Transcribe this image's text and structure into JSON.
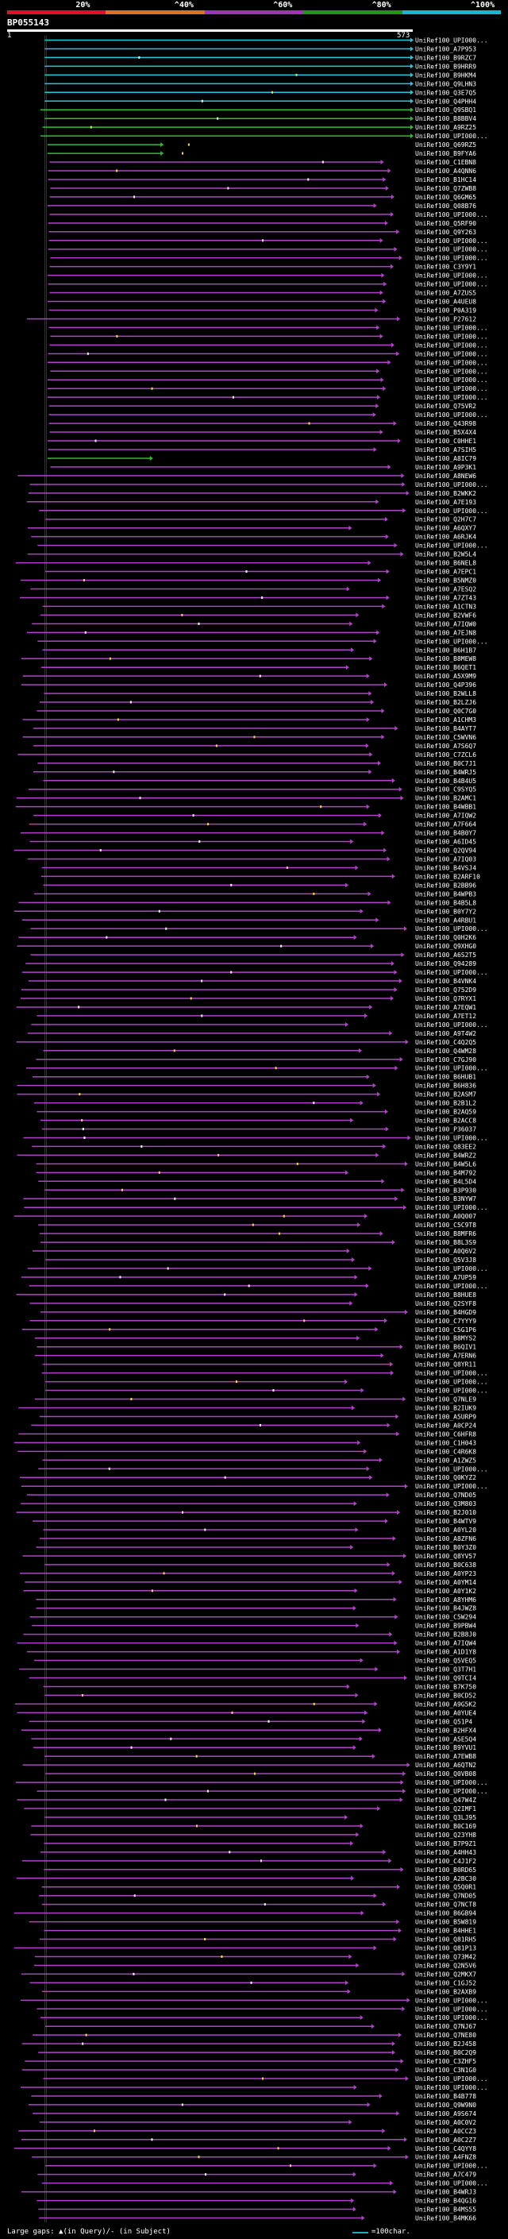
{
  "header": {
    "query_id": "BP055143",
    "query_start": "1",
    "query_end": "573",
    "query_length": 573,
    "pct_labels": [
      "20%",
      "^40%",
      "^60%",
      "^80%",
      "^100%"
    ],
    "pct_colors": [
      "#e0102b",
      "#e0701a",
      "#9c35b5",
      "#1a9a1a",
      "#1ab5d0"
    ]
  },
  "footer": {
    "gaps_text": "Large gaps: ▲(in Query)/- (in Subject)",
    "scale_text": "=100char."
  },
  "chart_data": {
    "type": "alignment-overview",
    "title": "BP055143",
    "query_range": [
      1,
      573
    ],
    "identity_colors": {
      "cyan": "#21c9dc",
      "green": "#33b833",
      "purple": "#b043c8"
    },
    "hit_labels": [
      "UniRef100_UPI000...",
      "UniRef100_A7P953",
      "UniRef100_B9RZC7",
      "UniRef100_B9HRR9",
      "UniRef100_B9HKM4",
      "UniRef100_Q9LHN3",
      "UniRef100_Q3E7Q5",
      "UniRef100_Q4PHH4",
      "UniRef100_Q9SBQ1",
      "UniRef100_B8BBV4",
      "UniRef100_A9RZ25",
      "UniRef100_UPI000...",
      "UniRef100_Q69RZ5",
      "UniRef100_B9FYA6",
      "UniRef100_C1EBN8",
      "UniRef100_A4QNN6",
      "UniRef100_B1HC14",
      "UniRef100_Q7ZWB8",
      "UniRef100_Q6GM65",
      "UniRef100_Q08B76",
      "UniRef100_UPI000...",
      "UniRef100_Q5RF90",
      "UniRef100_Q9Y263",
      "UniRef100_UPI000...",
      "UniRef100_UPI000...",
      "UniRef100_UPI000...",
      "UniRef100_C3Y9Y1",
      "UniRef100_UPI000...",
      "UniRef100_UPI000...",
      "UniRef100_A7ZUS5",
      "UniRef100_A4UEU8",
      "UniRef100_P0A319",
      "UniRef100_P27612",
      "UniRef100_UPI000...",
      "UniRef100_UPI000...",
      "UniRef100_UPI000...",
      "UniRef100_UPI000...",
      "UniRef100_UPI000...",
      "UniRef100_UPI000...",
      "UniRef100_UPI000...",
      "UniRef100_UPI000...",
      "UniRef100_UPI000...",
      "UniRef100_Q75VR2",
      "UniRef100_UPI000...",
      "UniRef100_Q43R98",
      "UniRef100_B5X4X4",
      "UniRef100_C0HHE1",
      "UniRef100_A7SIH5",
      "UniRef100_A8IC79",
      "UniRef100_A9P3K1",
      "UniRef100_A8NEW6",
      "UniRef100_UPI000...",
      "UniRef100_B2WKK2",
      "UniRef100_A7E193",
      "UniRef100_UPI000...",
      "UniRef100_Q2H7C7",
      "UniRef100_A6QXY7",
      "UniRef100_A6RJK4",
      "UniRef100_UPI000...",
      "UniRef100_B2W5L4",
      "UniRef100_B6NEL8",
      "UniRef100_A7EPC1",
      "UniRef100_B5NMZ0",
      "UniRef100_A7ESQ2",
      "UniRef100_A7ZT43",
      "UniRef100_A1CTN3",
      "UniRef100_B2VWF6",
      "UniRef100_A7IQW0",
      "UniRef100_A7EJN8",
      "UniRef100_UPI000...",
      "UniRef100_B6H1B7",
      "UniRef100_B8MEW8",
      "UniRef100_B6QET1",
      "UniRef100_A5X9M9",
      "UniRef100_Q4P396",
      "UniRef100_B2WLL8",
      "UniRef100_B2LZJ6",
      "UniRef100_Q0C7G0",
      "UniRef100_A1CHM3",
      "UniRef100_B4AYT7",
      "UniRef100_C5WVN6",
      "UniRef100_A7S6Q7",
      "UniRef100_C7ZCL6",
      "UniRef100_B0C7J1",
      "UniRef100_B4WRJ5",
      "UniRef100_B4B4U5",
      "UniRef100_C9SYQ5",
      "UniRef100_B2AMC1",
      "UniRef100_B4WBB1",
      "UniRef100_A7IQW2",
      "UniRef100_A7F664",
      "UniRef100_B4B0Y7",
      "UniRef100_A6ID45",
      "UniRef100_Q2QV94",
      "UniRef100_A7IQ03",
      "UniRef100_B4VSJ4",
      "UniRef100_B2ARF10",
      "UniRef100_B2BB96",
      "UniRef100_B4WPB3",
      "UniRef100_B4B5L8",
      "UniRef100_B0Y7Y2",
      "UniRef100_A4RBU1",
      "UniRef100_UPI000...",
      "UniRef100_Q0H2K6",
      "UniRef100_Q9XHG0",
      "UniRef100_A6S2T5",
      "UniRef100_Q94289",
      "UniRef100_UPI000...",
      "UniRef100_B4VNK4",
      "UniRef100_Q752D9",
      "UniRef100_Q7RYX1",
      "UniRef100_A7EQW1",
      "UniRef100_A7ET12",
      "UniRef100_UPI000...",
      "UniRef100_A9T4W2",
      "UniRef100_C4Q2Q5",
      "UniRef100_Q4WM28",
      "UniRef100_C7GJ90",
      "UniRef100_UPI000...",
      "UniRef100_B6HUB1",
      "UniRef100_B6H836",
      "UniRef100_B2ASM7",
      "UniRef100_B2B1L2",
      "UniRef100_B2AQ59",
      "UniRef100_B2ACC8",
      "UniRef100_P36037",
      "UniRef100_UPI000...",
      "UniRef100_Q83EE2",
      "UniRef100_B4WRZ2",
      "UniRef100_B4W5L6",
      "UniRef100_B4M792",
      "UniRef100_B4L5D4",
      "UniRef100_B3P930",
      "UniRef100_B3NYW7",
      "UniRef100_UPI000...",
      "UniRef100_A0Q007",
      "UniRef100_C5C9T8",
      "UniRef100_B8MFR6",
      "UniRef100_B8L3S9",
      "UniRef100_A0Q6V2",
      "UniRef100_Q5V3J8",
      "UniRef100_UPI000...",
      "UniRef100_A7UP59",
      "UniRef100_UPI000...",
      "UniRef100_B8HUE8",
      "UniRef100_Q2SYF8",
      "UniRef100_B4HGD9",
      "UniRef100_C7YYY9",
      "UniRef100_C5G1P6",
      "UniRef100_B8MYS2",
      "UniRef100_B6QIV1",
      "UniRef100_A7ERN6",
      "UniRef100_Q8YR11",
      "UniRef100_UPI000...",
      "UniRef100_UPI000...",
      "UniRef100_UPI000...",
      "UniRef100_Q7NLE9",
      "UniRef100_B2IUK9",
      "UniRef100_A5URP9",
      "UniRef100_A0CP24",
      "UniRef100_C6HFR8",
      "UniRef100_C1H043",
      "UniRef100_C4R6K8",
      "UniRef100_A1ZWZ5",
      "UniRef100_UPI000...",
      "UniRef100_Q0KYZ2",
      "UniRef100_UPI000...",
      "UniRef100_Q7ND05",
      "UniRef100_Q3M803",
      "UniRef100_B2J010",
      "UniRef100_B4WTV9",
      "UniRef100_A0YL20",
      "UniRef100_A8ZFN6",
      "UniRef100_B0Y3Z0",
      "UniRef100_Q8YV57",
      "UniRef100_B0C638",
      "UniRef100_A0YP23",
      "UniRef100_A0YM14",
      "UniRef100_A0Y1K2",
      "UniRef100_A8YHM6",
      "UniRef100_B4JWZ8",
      "UniRef100_C5W294",
      "UniRef100_B9PBW4",
      "UniRef100_B2B8J0",
      "UniRef100_A7IQW4",
      "UniRef100_A1D1Y8",
      "UniRef100_Q5VEQ5",
      "UniRef100_Q3T7H1",
      "UniRef100_Q9TCI4",
      "UniRef100_B7K750",
      "UniRef100_B0CD52",
      "UniRef100_A9G5K2",
      "UniRef100_A0YUE4",
      "UniRef100_Q51P4",
      "UniRef100_B2HFX4",
      "UniRef100_A5E5Q4",
      "UniRef100_B9YVU1",
      "UniRef100_A7EWB8",
      "UniRef100_A6QTN2",
      "UniRef100_Q0VB08",
      "UniRef100_UPI000...",
      "UniRef100_UPI000...",
      "UniRef100_Q47W4Z",
      "UniRef100_Q2IMF1",
      "UniRef100_Q3LJ95",
      "UniRef100_B0C169",
      "UniRef100_Q23YH8",
      "UniRef100_B7P9Z1",
      "UniRef100_A4HH43",
      "UniRef100_C4J1F2",
      "UniRef100_B0RD65",
      "UniRef100_A2BC30",
      "UniRef100_Q5Q0R1",
      "UniRef100_Q7ND05",
      "UniRef100_Q7NCT8",
      "UniRef100_B6GB94",
      "UniRef100_B5W819",
      "UniRef100_B4HHE1",
      "UniRef100_Q81RH5",
      "UniRef100_Q81P13",
      "UniRef100_Q73M42",
      "UniRef100_Q2N5V6",
      "UniRef100_Q2MKX7",
      "UniRef100_C1GJ52",
      "UniRef100_B2AXB9",
      "UniRef100_UPI000...",
      "UniRef100_UPI000...",
      "UniRef100_UPI000...",
      "UniRef100_Q7NJ67",
      "UniRef100_Q7NE80",
      "UniRef100_B2J458",
      "UniRef100_B0C2Q9",
      "UniRef100_C3ZHF5",
      "UniRef100_C3N1G0",
      "UniRef100_UPI000...",
      "UniRef100_UPI000...",
      "UniRef100_B4B778",
      "UniRef100_Q9W9N0",
      "UniRef100_A9S674",
      "UniRef100_A0C0V2",
      "UniRef100_A0CCZ3",
      "UniRef100_A0C2Z7",
      "UniRef100_C4QYY8",
      "UniRef100_A4FNZ8",
      "UniRef100_UPI000...",
      "UniRef100_A7C479",
      "UniRef100_UPI000...",
      "UniRef100_B4WRJ3",
      "UniRef100_B4QG16",
      "UniRef100_B4MS55",
      "UniRef100_B4MK66"
    ]
  }
}
